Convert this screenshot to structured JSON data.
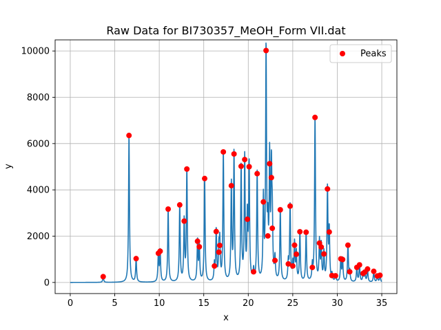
{
  "chart_data": {
    "type": "line",
    "title": "Raw Data for BI730357_MeOH_Form VII.dat",
    "xlabel": "x",
    "ylabel": "y",
    "xlim": [
      -1.7,
      36.7
    ],
    "ylim": [
      -480,
      10480
    ],
    "xticks": [
      0,
      5,
      10,
      15,
      20,
      25,
      30,
      35
    ],
    "yticks": [
      0,
      2000,
      4000,
      6000,
      8000,
      10000
    ],
    "grid": true,
    "legend": {
      "placement": "top-right",
      "entries": [
        "Peaks"
      ]
    },
    "colors": {
      "line": "#1f77b4",
      "peaks": "#ff0000"
    },
    "peak_width": 0.06,
    "series": [
      {
        "name": "Peaks",
        "kind": "scatter",
        "x": [
          3.7,
          6.6,
          7.4,
          9.9,
          10.1,
          11.0,
          12.3,
          12.8,
          13.1,
          14.3,
          14.5,
          15.1,
          16.2,
          16.4,
          16.7,
          16.8,
          17.2,
          18.1,
          18.4,
          19.2,
          19.6,
          19.9,
          20.1,
          20.6,
          21.0,
          21.7,
          22.0,
          22.2,
          22.4,
          22.6,
          22.7,
          23.0,
          23.6,
          24.5,
          24.7,
          25.0,
          25.2,
          25.4,
          25.8,
          26.5,
          27.2,
          27.5,
          28.0,
          28.2,
          28.5,
          28.9,
          29.1,
          29.4,
          29.8,
          30.4,
          30.6,
          31.2,
          31.4,
          32.2,
          32.5,
          32.9,
          33.1,
          33.4,
          34.1,
          34.5,
          34.8
        ],
        "y": [
          250,
          6350,
          1030,
          1260,
          1350,
          3170,
          3350,
          2650,
          4900,
          1780,
          1540,
          4490,
          710,
          2200,
          1310,
          1600,
          5640,
          4180,
          5550,
          5020,
          5310,
          2730,
          5000,
          460,
          4700,
          3480,
          10020,
          2010,
          5130,
          4530,
          2340,
          950,
          3140,
          800,
          3300,
          710,
          1610,
          1220,
          2190,
          2170,
          650,
          7130,
          1700,
          1530,
          1230,
          4040,
          2180,
          300,
          290,
          1020,
          990,
          1610,
          460,
          650,
          760,
          390,
          450,
          580,
          480,
          280,
          310
        ]
      }
    ]
  }
}
